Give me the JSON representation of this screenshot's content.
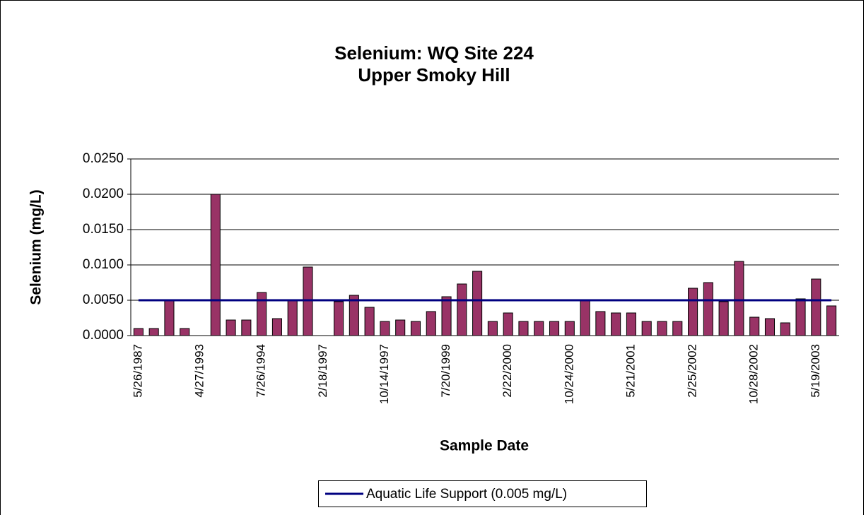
{
  "chart_data": {
    "type": "bar",
    "title": [
      "Selenium: WQ Site 224",
      "Upper Smoky Hill"
    ],
    "x_label": "Sample Date",
    "y_label": "Selenium (mg/L)",
    "categories": [
      "5/26/1987",
      null,
      null,
      null,
      "4/27/1993",
      null,
      null,
      null,
      "7/26/1994",
      null,
      null,
      null,
      "2/18/1997",
      null,
      null,
      null,
      "10/14/1997",
      null,
      null,
      null,
      "7/20/1999",
      null,
      null,
      null,
      "2/22/2000",
      null,
      null,
      null,
      "10/24/2000",
      null,
      null,
      null,
      "5/21/2001",
      null,
      null,
      null,
      "2/25/2002",
      null,
      null,
      null,
      "10/28/2002",
      null,
      null,
      null,
      "5/19/2003",
      null
    ],
    "values": [
      0.001,
      0.001,
      0.005,
      0.001,
      null,
      0.02,
      0.0022,
      0.0022,
      0.0061,
      0.0024,
      0.005,
      0.0097,
      null,
      0.0048,
      0.0057,
      0.004,
      0.002,
      0.0022,
      0.002,
      0.0034,
      0.0055,
      0.0073,
      0.0091,
      0.002,
      0.0032,
      0.002,
      0.002,
      0.002,
      0.002,
      0.005,
      0.0034,
      0.0032,
      0.0032,
      0.002,
      0.002,
      0.002,
      0.0067,
      0.0075,
      0.0048,
      0.0105,
      0.0026,
      0.0024,
      0.0018,
      0.0052,
      0.008,
      0.0042
    ],
    "color": "#993366",
    "reference_line": {
      "name": "Aquatic Life Support (0.005 mg/L)",
      "value": 0.005,
      "color": "#000080"
    },
    "ylim": [
      0,
      0.025
    ],
    "yticks": [
      {
        "value": 0,
        "label": "0.0000"
      },
      {
        "value": 0.005,
        "label": "0.0050"
      },
      {
        "value": 0.01,
        "label": "0.0100"
      },
      {
        "value": 0.015,
        "label": "0.0150"
      },
      {
        "value": 0.02,
        "label": "0.0200"
      },
      {
        "value": 0.025,
        "label": "0.0250"
      }
    ],
    "grid": true,
    "legend": "bottom"
  }
}
